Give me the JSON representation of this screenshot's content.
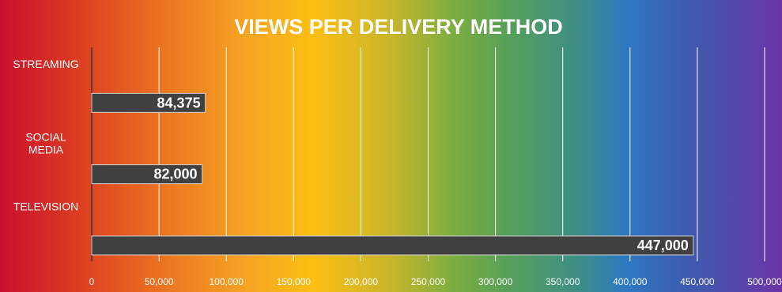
{
  "chart_data": {
    "type": "bar",
    "orientation": "horizontal",
    "title": "VIEWS PER DELIVERY METHOD",
    "xlabel": "",
    "ylabel": "",
    "categories": [
      [
        "STREAMING"
      ],
      [
        "SOCIAL",
        "MEDIA"
      ],
      [
        "TELEVISION"
      ]
    ],
    "values": [
      84375,
      82000,
      447000
    ],
    "value_labels": [
      "84,375",
      "82,000",
      "447,000"
    ],
    "xlim": [
      0,
      500000
    ],
    "ticks": [
      0,
      50000,
      100000,
      150000,
      200000,
      250000,
      300000,
      350000,
      400000,
      450000,
      500000
    ],
    "tick_labels": [
      "0",
      "50,000",
      "100,000",
      "150,000",
      "200,000",
      "250,000",
      "300,000",
      "350,000",
      "400,000",
      "450,000",
      "500,000"
    ],
    "grid": true,
    "bar_color": "#404040",
    "text_color": "#ffffff",
    "background": "rainbow gradient (red to purple)"
  }
}
